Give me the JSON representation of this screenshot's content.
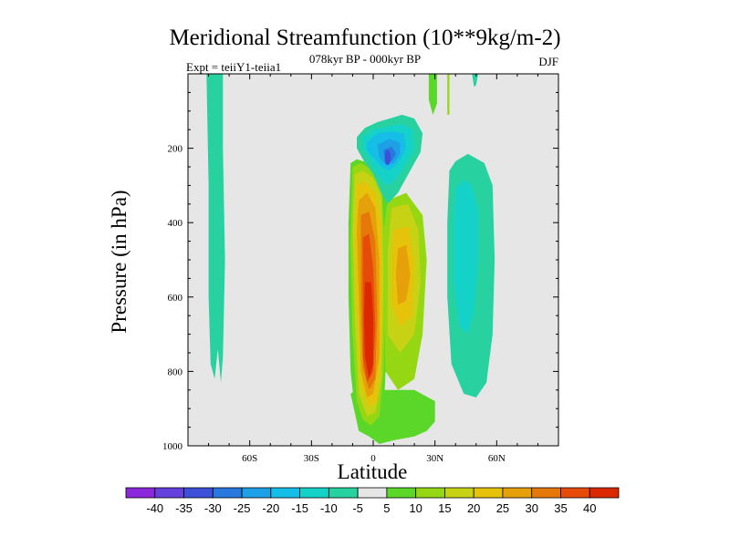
{
  "header": {
    "title": "Meridional Streamfunction (10**9kg/m-2)",
    "subtitle": "078kyr BP - 000kyr BP",
    "left_label": "Expt = teiiY1-teiia1",
    "right_label": "DJF"
  },
  "chart_data": {
    "type": "heatmap",
    "title": "Meridional Streamfunction (10**9kg/m-2)",
    "xlabel": "Latitude",
    "ylabel": "Pressure (in hPa)",
    "xlim": [
      -90,
      90
    ],
    "ylim": [
      1000,
      0
    ],
    "y_reversed": true,
    "x_ticks": [
      {
        "value": -60,
        "label": "60S"
      },
      {
        "value": -30,
        "label": "30S"
      },
      {
        "value": 0,
        "label": "0"
      },
      {
        "value": 30,
        "label": "30N"
      },
      {
        "value": 60,
        "label": "60N"
      }
    ],
    "y_ticks": [
      200,
      400,
      600,
      800,
      1000
    ],
    "background_color": "#e6e6e6",
    "colorbar": {
      "levels": [
        -40,
        -35,
        -30,
        -25,
        -20,
        -15,
        -10,
        -5,
        5,
        10,
        15,
        20,
        25,
        30,
        35,
        40
      ],
      "colors": [
        "#8c28dc",
        "#6440dc",
        "#3c50d8",
        "#2878e0",
        "#1ea0e6",
        "#14bee6",
        "#14d2c8",
        "#28d2a0",
        "#e6e6e6",
        "#5ad728",
        "#96d714",
        "#c8d214",
        "#e6c30a",
        "#e6a00a",
        "#e6780a",
        "#e64b0a",
        "#dc2800"
      ]
    },
    "regions": [
      {
        "feature": "southern high-latitude negative cell",
        "value": -5,
        "lat_range": [
          -80,
          -72
        ],
        "p_range": [
          0,
          810
        ]
      },
      {
        "feature": "upper-tropospheric negative cell",
        "value": -30,
        "center_lat": 7,
        "center_p": 240,
        "min_level": -30
      },
      {
        "feature": "tropical positive cell",
        "value": 40,
        "center_lat": -3,
        "center_p": 700,
        "max_level": 40
      },
      {
        "feature": "northern tropical positive cell",
        "value": 20,
        "center_lat": 10,
        "center_p": 550
      },
      {
        "feature": "northern mid-latitude negative cell",
        "value": -10,
        "center_lat": 45,
        "center_p": 500
      },
      {
        "feature": "near-surface positive band",
        "value": 5,
        "lat_range": [
          -10,
          30
        ],
        "p_range": [
          850,
          1000
        ]
      }
    ]
  }
}
